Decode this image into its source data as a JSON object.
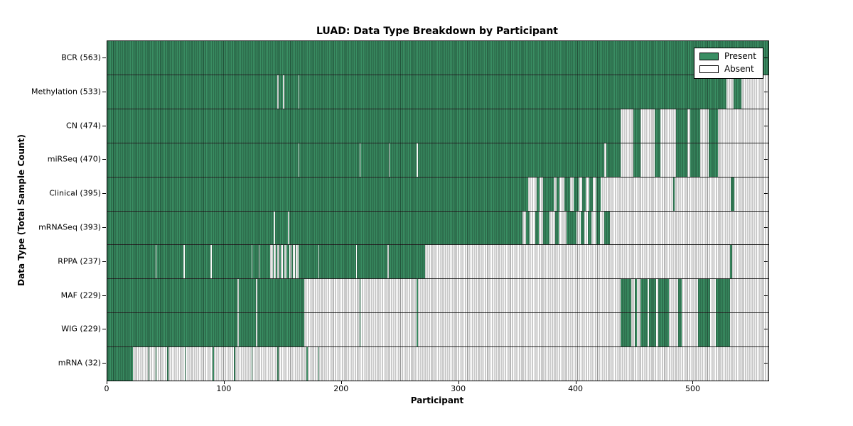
{
  "figure": {
    "title": "LUAD: Data Type Breakdown by Participant",
    "xlabel": "Participant",
    "ylabel": "Data Type (Total Sample Count)"
  },
  "legend": {
    "present_label": "Present",
    "absent_label": "Absent"
  },
  "chart_data": {
    "type": "heatmap",
    "title": "LUAD: Data Type Breakdown by Participant",
    "xlabel": "Participant",
    "ylabel": "Data Type (Total Sample Count)",
    "grid": false,
    "legend_position": "upper right",
    "legend_entries": [
      "Present",
      "Absent"
    ],
    "x_max": 564,
    "xticks": [
      0,
      100,
      200,
      300,
      400,
      500
    ],
    "colors": {
      "present": "#3A8E63",
      "absent": "#FFFFFF",
      "edge": "#000000"
    },
    "rows": [
      {
        "data_type": "BCR",
        "label": "BCR (563)",
        "present_count": 563,
        "present_ranges": [
          [
            0,
            564
          ]
        ]
      },
      {
        "data_type": "Methylation",
        "label": "Methylation (533)",
        "present_count": 533,
        "present_ranges": [
          [
            0,
            145
          ],
          [
            146,
            150
          ],
          [
            151,
            163
          ],
          [
            164,
            528
          ],
          [
            534,
            541
          ]
        ]
      },
      {
        "data_type": "CN",
        "label": "CN (474)",
        "present_count": 474,
        "present_ranges": [
          [
            0,
            438
          ],
          [
            449,
            455
          ],
          [
            467,
            472
          ],
          [
            485,
            495
          ],
          [
            497,
            506
          ],
          [
            513,
            521
          ]
        ]
      },
      {
        "data_type": "miRSeq",
        "label": "miRSeq (470)",
        "present_count": 470,
        "present_ranges": [
          [
            0,
            163
          ],
          [
            164,
            215
          ],
          [
            216,
            240
          ],
          [
            241,
            264
          ],
          [
            265,
            424
          ],
          [
            426,
            438
          ],
          [
            449,
            455
          ],
          [
            467,
            472
          ],
          [
            485,
            495
          ],
          [
            497,
            506
          ],
          [
            513,
            521
          ]
        ]
      },
      {
        "data_type": "Clinical",
        "label": "Clinical (395)",
        "present_count": 395,
        "present_ranges": [
          [
            0,
            359
          ],
          [
            366,
            369
          ],
          [
            372,
            381
          ],
          [
            383,
            386
          ],
          [
            390,
            395
          ],
          [
            398,
            402
          ],
          [
            405,
            408
          ],
          [
            411,
            414
          ],
          [
            417,
            421
          ],
          [
            483,
            484
          ],
          [
            532,
            535
          ]
        ]
      },
      {
        "data_type": "mRNASeq",
        "label": "mRNASeq (393)",
        "present_count": 393,
        "present_ranges": [
          [
            0,
            142
          ],
          [
            143,
            154
          ],
          [
            155,
            354
          ],
          [
            357,
            360
          ],
          [
            365,
            368
          ],
          [
            372,
            377
          ],
          [
            382,
            385
          ],
          [
            392,
            400
          ],
          [
            404,
            407
          ],
          [
            410,
            413
          ],
          [
            417,
            420
          ],
          [
            424,
            429
          ]
        ]
      },
      {
        "data_type": "RPPA",
        "label": "RPPA (237)",
        "present_count": 237,
        "present_ranges": [
          [
            0,
            41
          ],
          [
            42,
            65
          ],
          [
            66,
            88
          ],
          [
            89,
            123
          ],
          [
            124,
            129
          ],
          [
            130,
            139
          ],
          [
            141,
            142
          ],
          [
            144,
            145
          ],
          [
            147,
            148
          ],
          [
            150,
            151
          ],
          [
            153,
            155
          ],
          [
            157,
            158
          ],
          [
            160,
            161
          ],
          [
            163,
            180
          ],
          [
            181,
            212
          ],
          [
            213,
            239
          ],
          [
            240,
            271
          ],
          [
            531,
            533
          ]
        ]
      },
      {
        "data_type": "MAF",
        "label": "MAF (229)",
        "present_count": 229,
        "present_ranges": [
          [
            0,
            111
          ],
          [
            112,
            127
          ],
          [
            128,
            168
          ],
          [
            215,
            216
          ],
          [
            264,
            265
          ],
          [
            438,
            447
          ],
          [
            450,
            452
          ],
          [
            455,
            461
          ],
          [
            462,
            468
          ],
          [
            470,
            479
          ],
          [
            487,
            490
          ],
          [
            504,
            514
          ],
          [
            519,
            531
          ]
        ]
      },
      {
        "data_type": "WIG",
        "label": "WIG (229)",
        "present_count": 229,
        "present_ranges": [
          [
            0,
            111
          ],
          [
            112,
            127
          ],
          [
            128,
            168
          ],
          [
            215,
            216
          ],
          [
            264,
            265
          ],
          [
            438,
            447
          ],
          [
            450,
            452
          ],
          [
            455,
            461
          ],
          [
            462,
            468
          ],
          [
            470,
            479
          ],
          [
            487,
            490
          ],
          [
            504,
            514
          ],
          [
            519,
            531
          ]
        ]
      },
      {
        "data_type": "mRNA",
        "label": "mRNA (32)",
        "present_count": 32,
        "present_ranges": [
          [
            0,
            22
          ],
          [
            35,
            36
          ],
          [
            41,
            42
          ],
          [
            51,
            52
          ],
          [
            66,
            67
          ],
          [
            90,
            91
          ],
          [
            108,
            109
          ],
          [
            123,
            124
          ],
          [
            145,
            146
          ],
          [
            170,
            171
          ],
          [
            180,
            181
          ]
        ]
      }
    ]
  }
}
